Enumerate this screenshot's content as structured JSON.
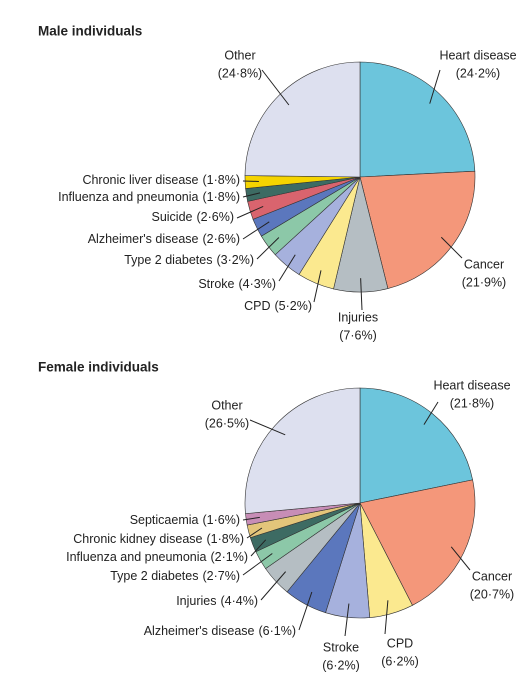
{
  "chart_data": [
    {
      "type": "pie",
      "title": "Male individuals",
      "categories": [
        "Heart disease",
        "Cancer",
        "Injuries",
        "CPD",
        "Stroke",
        "Type 2 diabetes",
        "Alzheimer's disease",
        "Suicide",
        "Influenza and pneumonia",
        "Chronic liver disease",
        "Other"
      ],
      "values": [
        24.2,
        21.9,
        7.6,
        5.2,
        4.3,
        3.2,
        2.6,
        2.6,
        1.8,
        1.8,
        24.8
      ],
      "value_labels": [
        "(24·2%)",
        "(21·9%)",
        "(7·6%)",
        "(5·2%)",
        "(4·3%)",
        "(3·2%)",
        "(2·6%)",
        "(2·6%)",
        "(1·8%)",
        "(1·8%)",
        "(24·8%)"
      ],
      "colors": [
        "#6cc5dc",
        "#f4977a",
        "#b5bec3",
        "#fbe98f",
        "#a6b1dd",
        "#8cc8a8",
        "#5b77bd",
        "#d9646e",
        "#3d6b63",
        "#f5d400",
        "#dde0ef"
      ]
    },
    {
      "type": "pie",
      "title": "Female individuals",
      "categories": [
        "Heart disease",
        "Cancer",
        "CPD",
        "Stroke",
        "Alzheimer's disease",
        "Injuries",
        "Type 2 diabetes",
        "Influenza and pneumonia",
        "Chronic kidney disease",
        "Septicaemia",
        "Other"
      ],
      "values": [
        21.8,
        20.7,
        6.2,
        6.2,
        6.1,
        4.4,
        2.7,
        2.1,
        1.8,
        1.6,
        26.5
      ],
      "value_labels": [
        "(21·8%)",
        "(20·7%)",
        "(6·2%)",
        "(6·2%)",
        "(6·1%)",
        "(4·4%)",
        "(2·7%)",
        "(2·1%)",
        "(1·8%)",
        "(1·6%)",
        "(26·5%)"
      ],
      "colors": [
        "#6cc5dc",
        "#f4977a",
        "#fbe98f",
        "#a6b1dd",
        "#5b77bd",
        "#b5bec3",
        "#8cc8a8",
        "#3d6b63",
        "#e3c57a",
        "#c78db6",
        "#dde0ef"
      ]
    }
  ]
}
